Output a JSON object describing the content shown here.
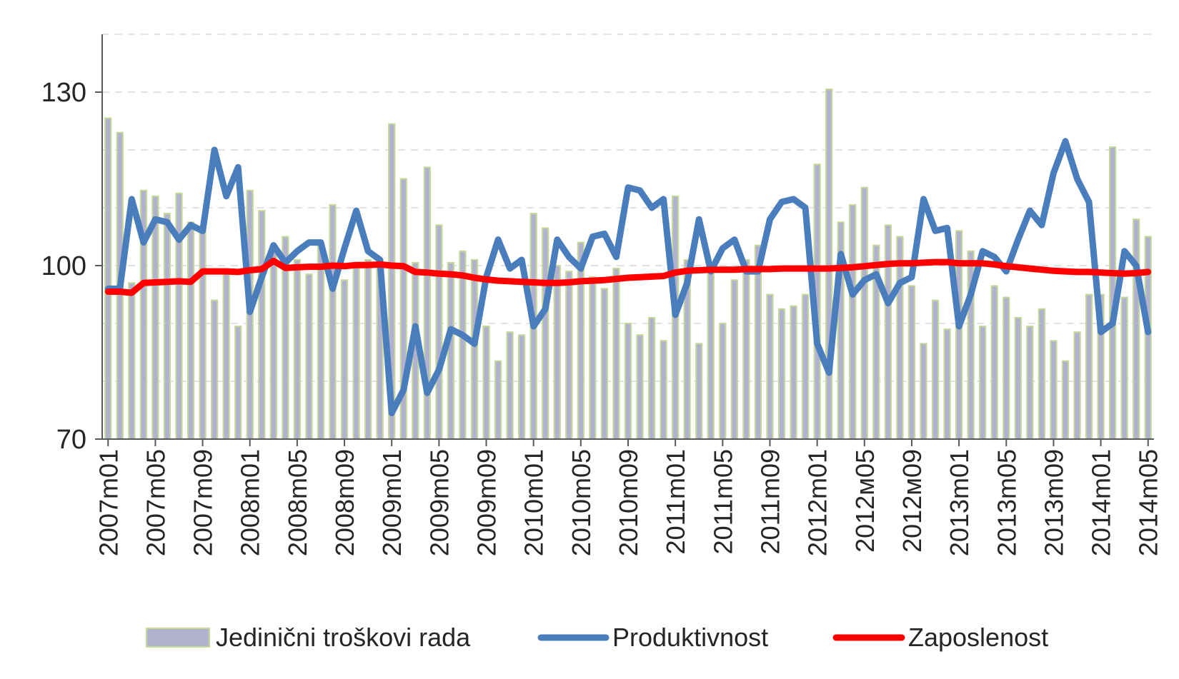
{
  "chart_data": {
    "type": "bar",
    "title": "",
    "xlabel": "",
    "ylabel": "",
    "ylim": [
      70,
      140
    ],
    "yticks": [
      70,
      100,
      130
    ],
    "grid": true,
    "legend_position": "bottom",
    "x": [
      "2007m01",
      "2007m02",
      "2007m03",
      "2007m04",
      "2007m05",
      "2007m06",
      "2007m07",
      "2007m08",
      "2007m09",
      "2007m10",
      "2007m11",
      "2007m12",
      "2008m01",
      "2008m02",
      "2008m03",
      "2008m04",
      "2008m05",
      "2008m06",
      "2008m07",
      "2008m08",
      "2008m09",
      "2008m10",
      "2008m11",
      "2008m12",
      "2009m01",
      "2009m02",
      "2009m03",
      "2009m04",
      "2009m05",
      "2009m06",
      "2009m07",
      "2009m08",
      "2009m09",
      "2009m10",
      "2009m11",
      "2009m12",
      "2010m01",
      "2010m02",
      "2010m03",
      "2010m04",
      "2010m05",
      "2010m06",
      "2010m07",
      "2010m08",
      "2010m09",
      "2010m10",
      "2010m11",
      "2010m12",
      "2011m01",
      "2011m02",
      "2011m03",
      "2011m04",
      "2011m05",
      "2011m06",
      "2011m07",
      "2011m08",
      "2011m09",
      "2011m10",
      "2011m11",
      "2011m12",
      "2012m01",
      "2012m02",
      "2012m03",
      "2012m04",
      "2012m05",
      "2012m06",
      "2012m07",
      "2012m08",
      "2012m09",
      "2012m10",
      "2012m11",
      "2012m12",
      "2013m01",
      "2013m02",
      "2013m03",
      "2013m04",
      "2013m05",
      "2013m06",
      "2013m07",
      "2013m08",
      "2013m09",
      "2013m10",
      "2013m11",
      "2013m12",
      "2014m01",
      "2014m02",
      "2014m03",
      "2014m04",
      "2014m05"
    ],
    "x_tick_labels": [
      "2007m01",
      "2007m05",
      "2007m09",
      "2008m01",
      "2008m05",
      "2008m09",
      "2009m01",
      "2009m05",
      "2009m09",
      "2010m01",
      "2010m05",
      "2010m09",
      "2011m01",
      "2011m05",
      "2011m09",
      "2012m01",
      "2012м05",
      "2012м09",
      "2013m01",
      "2013m05",
      "2013m09",
      "2014m01",
      "2014m05"
    ],
    "series": [
      {
        "name": "Jedinični troškovi rada",
        "type": "bar",
        "color": "#b2b2cf",
        "edge_color": "#c5d99a",
        "values": [
          125.5,
          123,
          97,
          113,
          112,
          109,
          112.5,
          107.5,
          106.5,
          94,
          99,
          89.5,
          113,
          109.5,
          103,
          105,
          101,
          98.5,
          103.5,
          110.5,
          97.5,
          100,
          101,
          101,
          124.5,
          115,
          100.5,
          117,
          107,
          100.5,
          102.5,
          101,
          89.5,
          83.5,
          88.5,
          88,
          109,
          106.5,
          100,
          99,
          104,
          98,
          96,
          99.5,
          90,
          88,
          91,
          87,
          112,
          101,
          86.5,
          99,
          90,
          97.5,
          101,
          103.5,
          95,
          92.5,
          93,
          95,
          117.5,
          130.5,
          107.5,
          110.5,
          113.5,
          103.5,
          107,
          105,
          96.5,
          86.5,
          94,
          89,
          106,
          102.5,
          89.5,
          96.5,
          94.5,
          91,
          89.5,
          92.5,
          87,
          83.5,
          88.5,
          95,
          95,
          120.5,
          94.5,
          108,
          105
        ]
      },
      {
        "name": "Produktivnost",
        "type": "line",
        "color": "#4a7dbb",
        "values": [
          96,
          96,
          111.5,
          104,
          108,
          107.5,
          104.5,
          107,
          106,
          120,
          112,
          117,
          92,
          98,
          103.5,
          100.5,
          102.5,
          104,
          104,
          96,
          103,
          109.5,
          102.5,
          101,
          74.5,
          78.5,
          89.5,
          78,
          82,
          89,
          88,
          86.5,
          98,
          104.5,
          99.5,
          101,
          89.5,
          92.5,
          104.5,
          101.5,
          99.5,
          105,
          105.5,
          101.5,
          113.5,
          113,
          110,
          111.5,
          91.5,
          97,
          108,
          99,
          103,
          104.5,
          99,
          99,
          108,
          111,
          111.5,
          110,
          86.5,
          81.5,
          102,
          95,
          97.5,
          98.5,
          93.5,
          97,
          98,
          111.5,
          106,
          106.5,
          89.5,
          95,
          102.5,
          101.5,
          99,
          104.5,
          109.5,
          107,
          116,
          121.5,
          115,
          111,
          88.5,
          90,
          102.5,
          100,
          88.5
        ]
      },
      {
        "name": "Zaposlenost",
        "type": "line",
        "color": "#ff0000",
        "values": [
          95.5,
          95.5,
          95.3,
          97,
          97.1,
          97.2,
          97.3,
          97.2,
          99,
          99,
          99,
          98.9,
          99.2,
          99.4,
          100.8,
          99.6,
          99.7,
          99.8,
          99.8,
          100,
          99.9,
          100.1,
          100.1,
          100.2,
          100,
          99.9,
          98.9,
          98.8,
          98.6,
          98.5,
          98.3,
          97.9,
          97.6,
          97.4,
          97.3,
          97.2,
          97.1,
          97,
          97,
          97.1,
          97.3,
          97.4,
          97.5,
          97.7,
          97.9,
          98,
          98.1,
          98.2,
          98.8,
          99.1,
          99.2,
          99.3,
          99.3,
          99.3,
          99.4,
          99.4,
          99.4,
          99.5,
          99.5,
          99.5,
          99.5,
          99.5,
          99.6,
          99.7,
          99.9,
          100.1,
          100.3,
          100.4,
          100.4,
          100.5,
          100.6,
          100.6,
          100.4,
          100.4,
          100.4,
          100.2,
          99.9,
          99.7,
          99.5,
          99.3,
          99.1,
          99,
          98.9,
          98.9,
          98.8,
          98.7,
          98.6,
          98.7,
          98.9
        ]
      }
    ]
  }
}
